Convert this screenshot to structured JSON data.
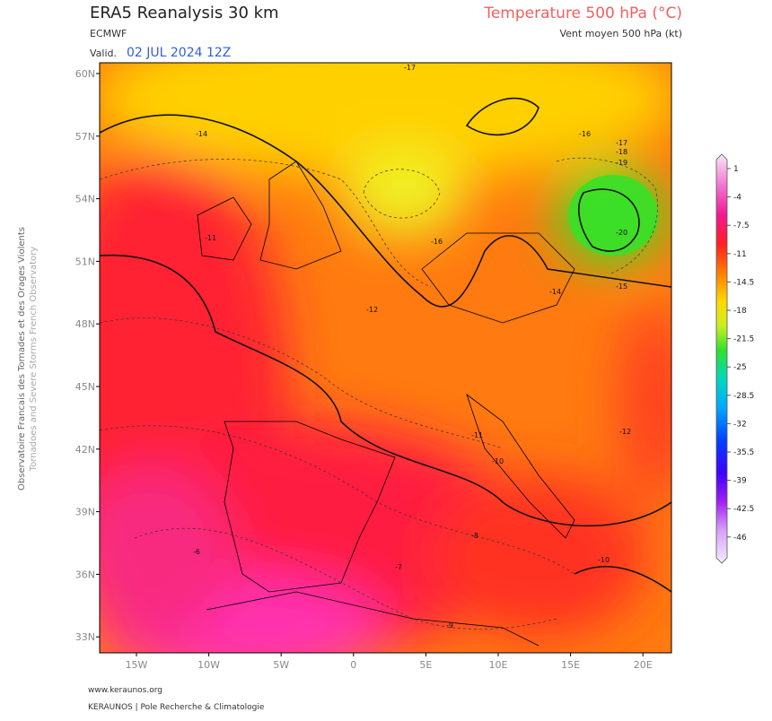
{
  "header": {
    "title": "ERA5 Reanalysis 30 km",
    "model": "ECMWF",
    "valid_label": "Valid.",
    "valid_date": "02 JUL 2024 12Z",
    "parameter": "Temperature 500 hPa (°C)",
    "subtitle": "Vent moyen 500 hPa (kt)"
  },
  "side": {
    "fr": "Observatoire Francais des Tornades et des Orages Violents",
    "en": "Tornadoes and Severe Storms French Observatory"
  },
  "map": {
    "lat_labels": [
      "60N",
      "57N",
      "54N",
      "51N",
      "48N",
      "45N",
      "42N",
      "39N",
      "36N",
      "33N"
    ],
    "lon_labels": [
      "15W",
      "10W",
      "5W",
      "0",
      "5E",
      "10E",
      "15E",
      "20E"
    ],
    "contour_labels": [
      "-17",
      "-14",
      "-16",
      "-17",
      "-18",
      "-19",
      "-20",
      "-15",
      "-14",
      "-12",
      "-11",
      "-16",
      "-11",
      "-10",
      "-12",
      "-10",
      "-9",
      "-8",
      "-7",
      "-6"
    ]
  },
  "colorbar": {
    "labels": [
      1,
      -4,
      -7.5,
      -11,
      -14.5,
      -18,
      -21.5,
      -25,
      -28.5,
      -32,
      -35.5,
      -39,
      -42.5,
      -46
    ]
  },
  "footer": {
    "site": "www.keraunos.org",
    "org": "KERAUNOS | Pole Recherche & Climatologie"
  }
}
